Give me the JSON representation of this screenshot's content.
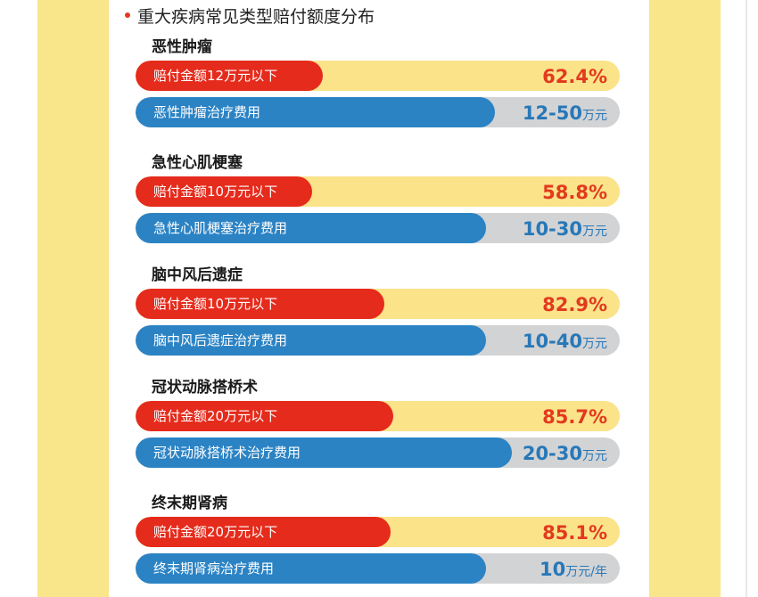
{
  "heading": "重大疾病常见类型赔付额度分布",
  "colors": {
    "claim_fill": "#e52b1c",
    "claim_track": "#fbe38a",
    "cost_fill": "#2b83c4",
    "cost_track": "#d2d3d5",
    "percent_text": "#e23a1f",
    "range_text": "#2778b8"
  },
  "chart_data": {
    "type": "bar",
    "title": "重大疾病常见类型赔付额度分布",
    "categories": [
      "恶性肿瘤",
      "急性心肌梗塞",
      "脑中风后遗症",
      "冠状动脉搭桥术",
      "终末期肾病"
    ],
    "series": [
      {
        "values": [
          62.4,
          58.8,
          82.9,
          85.7,
          85.1
        ],
        "labels": [
          "赔付金额12万元以下",
          "赔付金额10万元以下",
          "赔付金额10万元以下",
          "赔付金额20万元以下",
          "赔付金额20万元以下"
        ],
        "display": [
          "62.4%",
          "58.8%",
          "82.9%",
          "85.7%",
          "85.1%"
        ]
      },
      {
        "labels": [
          "恶性肿瘤治疗费用",
          "急性心肌梗塞治疗费用",
          "脑中风后遗症治疗费用",
          "冠状动脉搭桥术治疗费用",
          "终末期肾病治疗费用"
        ],
        "display": [
          "12-50",
          "10-30",
          "10-40",
          "20-30",
          "10"
        ],
        "units": [
          "万元",
          "万元",
          "万元",
          "万元",
          "万元/年"
        ]
      }
    ]
  }
}
